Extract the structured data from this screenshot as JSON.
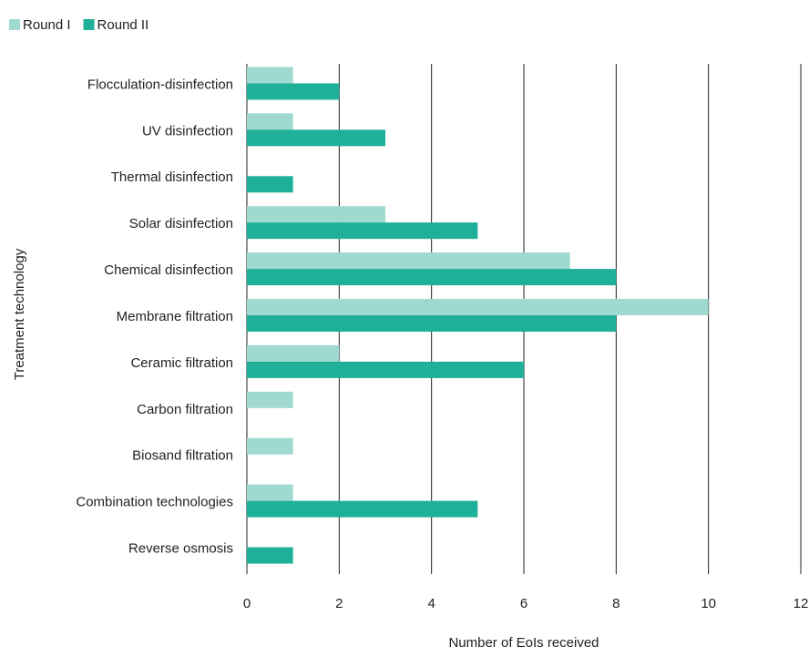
{
  "chart_data": {
    "type": "barh",
    "xlabel": "Number of EoIs received",
    "ylabel": "Treatment technology",
    "categories": [
      "Flocculation-disinfection",
      "UV disinfection",
      "Thermal disinfection",
      "Solar disinfection",
      "Chemical disinfection",
      "Membrane filtration",
      "Ceramic filtration",
      "Carbon filtration",
      "Biosand filtration",
      "Combination technologies",
      "Reverse osmosis"
    ],
    "series": [
      {
        "name": "Round I",
        "color": "#a0d9cf",
        "values": [
          1,
          1,
          0,
          3,
          7,
          10,
          2,
          1,
          1,
          1,
          0
        ]
      },
      {
        "name": "Round II",
        "color": "#1fb09a",
        "values": [
          2,
          3,
          1,
          5,
          8,
          8,
          6,
          0,
          0,
          5,
          1
        ]
      }
    ],
    "xlim": [
      0,
      12
    ],
    "xticks": [
      0,
      2,
      4,
      6,
      8,
      10,
      12
    ],
    "grid": true,
    "legend": "top-left"
  }
}
